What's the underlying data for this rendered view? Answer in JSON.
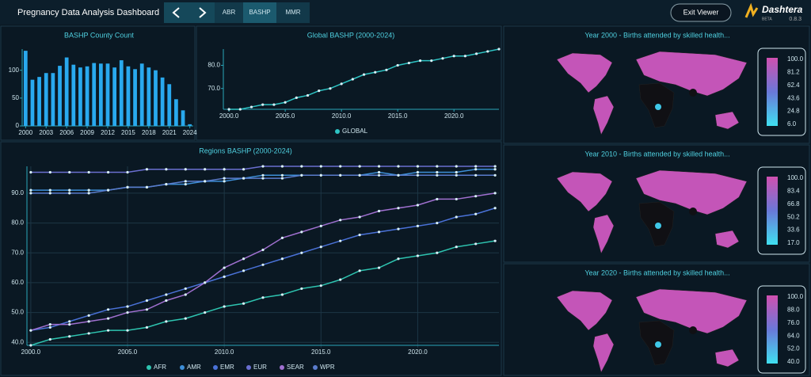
{
  "header": {
    "title": "Pregnancy Data Analysis Dashboard",
    "tabs": [
      "ABR",
      "BASHP",
      "MMR"
    ],
    "exit_button": "Exit Viewer",
    "logo": "Dashtera",
    "badge": "BETA",
    "version": "0.8.3"
  },
  "chart_data": [
    {
      "type": "bar",
      "title": "BASHP County Count",
      "x": [
        2000,
        2001,
        2002,
        2003,
        2004,
        2005,
        2006,
        2007,
        2008,
        2009,
        2010,
        2011,
        2012,
        2013,
        2014,
        2015,
        2016,
        2017,
        2018,
        2019,
        2020,
        2021,
        2022,
        2023,
        2024
      ],
      "values": [
        135,
        83,
        88,
        95,
        95,
        108,
        123,
        110,
        105,
        107,
        113,
        112,
        112,
        105,
        118,
        107,
        102,
        112,
        105,
        100,
        87,
        75,
        48,
        28,
        3
      ],
      "color": "#29a9ee",
      "xlim": [
        1999.5,
        2024.5
      ],
      "xticks": [
        2000,
        2003,
        2006,
        2009,
        2012,
        2015,
        2018,
        2021,
        2024
      ],
      "ylim": [
        0,
        138
      ],
      "yticks": [
        0,
        50,
        100
      ],
      "grid": false
    },
    {
      "type": "line",
      "title": "Global BASHP (2000-2024)",
      "x": [
        2000,
        2001,
        2002,
        2003,
        2004,
        2005,
        2006,
        2007,
        2008,
        2009,
        2010,
        2011,
        2012,
        2013,
        2014,
        2015,
        2016,
        2017,
        2018,
        2019,
        2020,
        2021,
        2022,
        2023,
        2024
      ],
      "series": [
        {
          "name": "GLOBAL",
          "color": "#2ec4c4",
          "values": [
            61,
            61,
            62,
            63,
            63,
            64,
            66,
            67,
            69,
            70,
            72,
            74,
            76,
            77,
            78,
            80,
            81,
            82,
            82,
            83,
            84,
            84,
            85,
            86,
            87
          ]
        }
      ],
      "xlim": [
        1999.5,
        2024
      ],
      "xticks": [
        {
          "value": 2000,
          "label": "2000.0"
        },
        {
          "value": 2005,
          "label": "2005.0"
        },
        {
          "value": 2010,
          "label": "2010.0"
        },
        {
          "value": 2015,
          "label": "2015.0"
        },
        {
          "value": 2020,
          "label": "2020.0"
        }
      ],
      "ylim": [
        61,
        87
      ],
      "yticks": [
        {
          "value": 70,
          "label": "70.0"
        },
        {
          "value": 80,
          "label": "80.0"
        }
      ],
      "grid": false
    },
    {
      "type": "line",
      "title": "Regions BASHP (2000-2024)",
      "x": [
        2000,
        2001,
        2002,
        2003,
        2004,
        2005,
        2006,
        2007,
        2008,
        2009,
        2010,
        2011,
        2012,
        2013,
        2014,
        2015,
        2016,
        2017,
        2018,
        2019,
        2020,
        2021,
        2022,
        2023,
        2024
      ],
      "series": [
        {
          "name": "AFR",
          "color": "#2ec4b0",
          "values": [
            39,
            41,
            42,
            43,
            44,
            44,
            45,
            47,
            48,
            50,
            52,
            53,
            55,
            56,
            58,
            59,
            61,
            64,
            65,
            68,
            69,
            70,
            72,
            73,
            74
          ]
        },
        {
          "name": "AMR",
          "color": "#3d8fd8",
          "values": [
            91,
            91,
            91,
            91,
            91,
            92,
            92,
            93,
            93,
            94,
            94,
            95,
            96,
            96,
            96,
            96,
            96,
            96,
            97,
            96,
            97,
            97,
            97,
            98,
            98
          ]
        },
        {
          "name": "EMR",
          "color": "#4a72d8",
          "values": [
            44,
            45,
            47,
            49,
            51,
            52,
            54,
            56,
            58,
            60,
            62,
            64,
            66,
            68,
            70,
            72,
            74,
            76,
            77,
            78,
            79,
            80,
            82,
            83,
            85
          ]
        },
        {
          "name": "EUR",
          "color": "#6a6fd0",
          "values": [
            97,
            97,
            97,
            97,
            97,
            97,
            98,
            98,
            98,
            98,
            98,
            98,
            99,
            99,
            99,
            99,
            99,
            99,
            99,
            99,
            99,
            99,
            99,
            99,
            99
          ]
        },
        {
          "name": "SEAR",
          "color": "#a070d0",
          "values": [
            44,
            46,
            46,
            47,
            48,
            50,
            51,
            54,
            56,
            60,
            65,
            68,
            71,
            75,
            77,
            79,
            81,
            82,
            84,
            85,
            86,
            88,
            88,
            89,
            90
          ]
        },
        {
          "name": "WPR",
          "color": "#5a7ccc",
          "values": [
            90,
            90,
            90,
            90,
            91,
            92,
            92,
            93,
            94,
            94,
            95,
            95,
            95,
            95,
            96,
            96,
            96,
            96,
            96,
            96,
            96,
            96,
            96,
            96,
            96
          ]
        }
      ],
      "xlim": [
        1999.8,
        2024.2
      ],
      "xticks": [
        {
          "value": 2000,
          "label": "2000.0"
        },
        {
          "value": 2005,
          "label": "2005.0"
        },
        {
          "value": 2010,
          "label": "2010.0"
        },
        {
          "value": 2015,
          "label": "2015.0"
        },
        {
          "value": 2020,
          "label": "2020.0"
        }
      ],
      "ylim": [
        39,
        99
      ],
      "yticks": [
        {
          "value": 40,
          "label": "40.0"
        },
        {
          "value": 50,
          "label": "50.0"
        },
        {
          "value": 60,
          "label": "60.0"
        },
        {
          "value": 70,
          "label": "70.0"
        },
        {
          "value": 80,
          "label": "80.0"
        },
        {
          "value": 90,
          "label": "90.0"
        }
      ],
      "grid": true
    }
  ],
  "maps": [
    {
      "title": "Year 2000 - Births attended by skilled health...",
      "colorbar_ticks": [
        "100.0",
        "81.2",
        "62.4",
        "43.6",
        "24.8",
        "6.0"
      ]
    },
    {
      "title": "Year 2010 - Births attended by skilled health...",
      "colorbar_ticks": [
        "100.0",
        "83.4",
        "66.8",
        "50.2",
        "33.6",
        "17.0"
      ]
    },
    {
      "title": "Year 2020 - Births attended by skilled health...",
      "colorbar_ticks": [
        "100.0",
        "88.0",
        "76.0",
        "64.0",
        "52.0",
        "40.0"
      ]
    }
  ]
}
